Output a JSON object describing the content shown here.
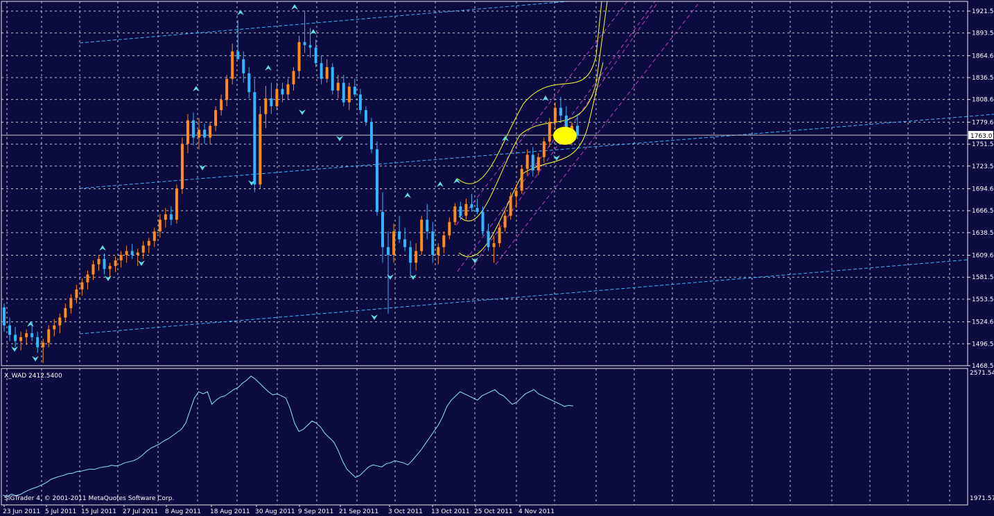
{
  "colors": {
    "background": "#0b0b3f",
    "frame": "#e8e8e8",
    "grid": "#ffffff",
    "bull_candle": "#ff8c1a",
    "bear_candle": "#33b5ff",
    "channel": "#3fb4ff",
    "regression": "#c040c0",
    "envelope": "#ffff33",
    "fractal": "#5ee0e0",
    "indicator_line": "#8fe8ff",
    "price_line": "#c8c8c8",
    "marker": "#ffff00"
  },
  "footer": {
    "copyright": "SIGTrader 4, © 2001-2011 MetaQuotes Software Corp."
  },
  "chart_data": [
    {
      "type": "candlestick",
      "title": "",
      "y_axis_ticks": [
        "1921.55",
        "1893.55",
        "1864.60",
        "1836.55",
        "1808.60",
        "1779.60",
        "1751.55",
        "1723.55",
        "1694.60",
        "1666.55",
        "1638.50",
        "1609.60",
        "1581.55",
        "1553.50",
        "1524.60",
        "1496.55",
        "1468.50"
      ],
      "current_price": "1763.07",
      "x_axis_ticks": [
        "23 Jun 2011",
        "5 Jul 2011",
        "15 Jul 2011",
        "27 Jul 2011",
        "8 Aug 2011",
        "18 Aug 2011",
        "30 Aug 2011",
        "9 Sep 2011",
        "21 Sep 2011",
        "3 Oct 2011",
        "13 Oct 2011",
        "25 Oct 2011",
        "4 Nov 2011"
      ],
      "ylim": [
        1468.5,
        1921.55
      ],
      "series": [
        {
          "o": 1543,
          "h": 1548,
          "l": 1512,
          "c": 1520
        },
        {
          "o": 1520,
          "h": 1530,
          "l": 1500,
          "c": 1508
        },
        {
          "o": 1508,
          "h": 1518,
          "l": 1492,
          "c": 1500
        },
        {
          "o": 1500,
          "h": 1512,
          "l": 1488,
          "c": 1505
        },
        {
          "o": 1505,
          "h": 1515,
          "l": 1495,
          "c": 1510
        },
        {
          "o": 1510,
          "h": 1525,
          "l": 1500,
          "c": 1505
        },
        {
          "o": 1505,
          "h": 1512,
          "l": 1485,
          "c": 1492
        },
        {
          "o": 1492,
          "h": 1503,
          "l": 1472,
          "c": 1498
        },
        {
          "o": 1498,
          "h": 1520,
          "l": 1492,
          "c": 1515
        },
        {
          "o": 1515,
          "h": 1528,
          "l": 1506,
          "c": 1520
        },
        {
          "o": 1520,
          "h": 1535,
          "l": 1510,
          "c": 1530
        },
        {
          "o": 1530,
          "h": 1548,
          "l": 1525,
          "c": 1542
        },
        {
          "o": 1542,
          "h": 1560,
          "l": 1535,
          "c": 1555
        },
        {
          "o": 1555,
          "h": 1572,
          "l": 1548,
          "c": 1566
        },
        {
          "o": 1566,
          "h": 1580,
          "l": 1558,
          "c": 1575
        },
        {
          "o": 1575,
          "h": 1590,
          "l": 1566,
          "c": 1585
        },
        {
          "o": 1585,
          "h": 1603,
          "l": 1578,
          "c": 1598
        },
        {
          "o": 1598,
          "h": 1610,
          "l": 1590,
          "c": 1605
        },
        {
          "o": 1605,
          "h": 1612,
          "l": 1585,
          "c": 1592
        },
        {
          "o": 1592,
          "h": 1600,
          "l": 1580,
          "c": 1596
        },
        {
          "o": 1596,
          "h": 1608,
          "l": 1588,
          "c": 1603
        },
        {
          "o": 1603,
          "h": 1615,
          "l": 1594,
          "c": 1610
        },
        {
          "o": 1610,
          "h": 1622,
          "l": 1600,
          "c": 1615
        },
        {
          "o": 1615,
          "h": 1624,
          "l": 1605,
          "c": 1610
        },
        {
          "o": 1610,
          "h": 1618,
          "l": 1596,
          "c": 1613
        },
        {
          "o": 1613,
          "h": 1628,
          "l": 1605,
          "c": 1622
        },
        {
          "o": 1622,
          "h": 1632,
          "l": 1612,
          "c": 1628
        },
        {
          "o": 1628,
          "h": 1645,
          "l": 1620,
          "c": 1640
        },
        {
          "o": 1640,
          "h": 1662,
          "l": 1632,
          "c": 1655
        },
        {
          "o": 1655,
          "h": 1670,
          "l": 1645,
          "c": 1662
        },
        {
          "o": 1662,
          "h": 1672,
          "l": 1648,
          "c": 1655
        },
        {
          "o": 1655,
          "h": 1700,
          "l": 1650,
          "c": 1695
        },
        {
          "o": 1695,
          "h": 1760,
          "l": 1688,
          "c": 1752
        },
        {
          "o": 1752,
          "h": 1790,
          "l": 1740,
          "c": 1782
        },
        {
          "o": 1782,
          "h": 1792,
          "l": 1750,
          "c": 1760
        },
        {
          "o": 1760,
          "h": 1785,
          "l": 1745,
          "c": 1770
        },
        {
          "o": 1770,
          "h": 1778,
          "l": 1752,
          "c": 1760
        },
        {
          "o": 1760,
          "h": 1780,
          "l": 1752,
          "c": 1775
        },
        {
          "o": 1775,
          "h": 1800,
          "l": 1768,
          "c": 1795
        },
        {
          "o": 1795,
          "h": 1815,
          "l": 1788,
          "c": 1808
        },
        {
          "o": 1808,
          "h": 1840,
          "l": 1800,
          "c": 1835
        },
        {
          "o": 1835,
          "h": 1880,
          "l": 1828,
          "c": 1870
        },
        {
          "o": 1870,
          "h": 1910,
          "l": 1860,
          "c": 1860
        },
        {
          "o": 1860,
          "h": 1870,
          "l": 1830,
          "c": 1842
        },
        {
          "o": 1842,
          "h": 1850,
          "l": 1810,
          "c": 1818
        },
        {
          "o": 1818,
          "h": 1835,
          "l": 1690,
          "c": 1700
        },
        {
          "o": 1700,
          "h": 1800,
          "l": 1695,
          "c": 1790
        },
        {
          "o": 1790,
          "h": 1826,
          "l": 1772,
          "c": 1810
        },
        {
          "o": 1810,
          "h": 1830,
          "l": 1790,
          "c": 1800
        },
        {
          "o": 1800,
          "h": 1830,
          "l": 1795,
          "c": 1822
        },
        {
          "o": 1822,
          "h": 1830,
          "l": 1805,
          "c": 1815
        },
        {
          "o": 1815,
          "h": 1835,
          "l": 1808,
          "c": 1828
        },
        {
          "o": 1828,
          "h": 1850,
          "l": 1820,
          "c": 1845
        },
        {
          "o": 1845,
          "h": 1890,
          "l": 1835,
          "c": 1882
        },
        {
          "o": 1882,
          "h": 1922,
          "l": 1868,
          "c": 1878
        },
        {
          "o": 1878,
          "h": 1900,
          "l": 1862,
          "c": 1875
        },
        {
          "o": 1875,
          "h": 1885,
          "l": 1850,
          "c": 1855
        },
        {
          "o": 1855,
          "h": 1865,
          "l": 1828,
          "c": 1835
        },
        {
          "o": 1835,
          "h": 1860,
          "l": 1830,
          "c": 1850
        },
        {
          "o": 1850,
          "h": 1855,
          "l": 1815,
          "c": 1820
        },
        {
          "o": 1820,
          "h": 1840,
          "l": 1810,
          "c": 1830
        },
        {
          "o": 1830,
          "h": 1840,
          "l": 1800,
          "c": 1805
        },
        {
          "o": 1805,
          "h": 1830,
          "l": 1795,
          "c": 1825
        },
        {
          "o": 1825,
          "h": 1835,
          "l": 1812,
          "c": 1815
        },
        {
          "o": 1815,
          "h": 1822,
          "l": 1790,
          "c": 1795
        },
        {
          "o": 1795,
          "h": 1800,
          "l": 1775,
          "c": 1780
        },
        {
          "o": 1780,
          "h": 1785,
          "l": 1740,
          "c": 1745
        },
        {
          "o": 1745,
          "h": 1755,
          "l": 1660,
          "c": 1665
        },
        {
          "o": 1665,
          "h": 1690,
          "l": 1600,
          "c": 1620
        },
        {
          "o": 1620,
          "h": 1640,
          "l": 1535,
          "c": 1610
        },
        {
          "o": 1610,
          "h": 1650,
          "l": 1600,
          "c": 1640
        },
        {
          "o": 1640,
          "h": 1660,
          "l": 1625,
          "c": 1630
        },
        {
          "o": 1630,
          "h": 1645,
          "l": 1615,
          "c": 1620
        },
        {
          "o": 1620,
          "h": 1628,
          "l": 1585,
          "c": 1600
        },
        {
          "o": 1600,
          "h": 1625,
          "l": 1590,
          "c": 1615
        },
        {
          "o": 1615,
          "h": 1660,
          "l": 1610,
          "c": 1655
        },
        {
          "o": 1655,
          "h": 1675,
          "l": 1630,
          "c": 1640
        },
        {
          "o": 1640,
          "h": 1652,
          "l": 1600,
          "c": 1610
        },
        {
          "o": 1610,
          "h": 1625,
          "l": 1598,
          "c": 1620
        },
        {
          "o": 1620,
          "h": 1640,
          "l": 1612,
          "c": 1635
        },
        {
          "o": 1635,
          "h": 1658,
          "l": 1630,
          "c": 1652
        },
        {
          "o": 1652,
          "h": 1676,
          "l": 1648,
          "c": 1672
        },
        {
          "o": 1672,
          "h": 1678,
          "l": 1655,
          "c": 1660
        },
        {
          "o": 1660,
          "h": 1682,
          "l": 1655,
          "c": 1675
        },
        {
          "o": 1675,
          "h": 1688,
          "l": 1665,
          "c": 1670
        },
        {
          "o": 1670,
          "h": 1682,
          "l": 1662,
          "c": 1665
        },
        {
          "o": 1665,
          "h": 1672,
          "l": 1635,
          "c": 1640
        },
        {
          "o": 1640,
          "h": 1650,
          "l": 1615,
          "c": 1620
        },
        {
          "o": 1620,
          "h": 1635,
          "l": 1600,
          "c": 1625
        },
        {
          "o": 1625,
          "h": 1650,
          "l": 1620,
          "c": 1645
        },
        {
          "o": 1645,
          "h": 1668,
          "l": 1640,
          "c": 1660
        },
        {
          "o": 1660,
          "h": 1690,
          "l": 1655,
          "c": 1685
        },
        {
          "o": 1685,
          "h": 1700,
          "l": 1670,
          "c": 1692
        },
        {
          "o": 1692,
          "h": 1725,
          "l": 1688,
          "c": 1720
        },
        {
          "o": 1720,
          "h": 1745,
          "l": 1712,
          "c": 1738
        },
        {
          "o": 1738,
          "h": 1748,
          "l": 1710,
          "c": 1718
        },
        {
          "o": 1718,
          "h": 1740,
          "l": 1712,
          "c": 1735
        },
        {
          "o": 1735,
          "h": 1760,
          "l": 1728,
          "c": 1755
        },
        {
          "o": 1755,
          "h": 1785,
          "l": 1748,
          "c": 1780
        },
        {
          "o": 1780,
          "h": 1805,
          "l": 1770,
          "c": 1798
        },
        {
          "o": 1798,
          "h": 1812,
          "l": 1780,
          "c": 1788
        },
        {
          "o": 1788,
          "h": 1800,
          "l": 1760,
          "c": 1768
        },
        {
          "o": 1768,
          "h": 1780,
          "l": 1750,
          "c": 1775
        },
        {
          "o": 1775,
          "h": 1790,
          "l": 1758,
          "c": 1763
        }
      ]
    },
    {
      "type": "line",
      "title": "X_WAD 2412.5400",
      "y_axis_ticks": [
        "2571.54",
        "1971.57"
      ],
      "ylim": [
        1971.57,
        2571.54
      ],
      "series": [
        {
          "name": "",
          "values": [
            1985,
            1978,
            1990,
            1983,
            1988,
            2000,
            2010,
            2018,
            2025,
            2035,
            2045,
            2060,
            2068,
            2075,
            2080,
            2088,
            2090,
            2098,
            2100,
            2105,
            2110,
            2108,
            2115,
            2120,
            2122,
            2128,
            2125,
            2130,
            2140,
            2145,
            2150,
            2160,
            2175,
            2195,
            2210,
            2220,
            2230,
            2245,
            2255,
            2270,
            2285,
            2300,
            2330,
            2390,
            2450,
            2480,
            2470,
            2480,
            2420,
            2440,
            2455,
            2460,
            2475,
            2490,
            2500,
            2520,
            2535,
            2555,
            2540,
            2520,
            2500,
            2480,
            2465,
            2470,
            2460,
            2450,
            2400,
            2330,
            2290,
            2300,
            2320,
            2340,
            2330,
            2310,
            2280,
            2260,
            2240,
            2200,
            2150,
            2110,
            2090,
            2070,
            2080,
            2100,
            2120,
            2130,
            2125,
            2120,
            2135,
            2140,
            2150,
            2145,
            2140,
            2130,
            2150,
            2175,
            2200,
            2230,
            2260,
            2290,
            2320,
            2360,
            2410,
            2440,
            2460,
            2480,
            2470,
            2460,
            2450,
            2440,
            2460,
            2470,
            2480,
            2490,
            2470,
            2460,
            2440,
            2420,
            2430,
            2450,
            2470,
            2480,
            2490,
            2470,
            2460,
            2450,
            2440,
            2430,
            2420,
            2410,
            2415,
            2412
          ]
        }
      ]
    }
  ]
}
